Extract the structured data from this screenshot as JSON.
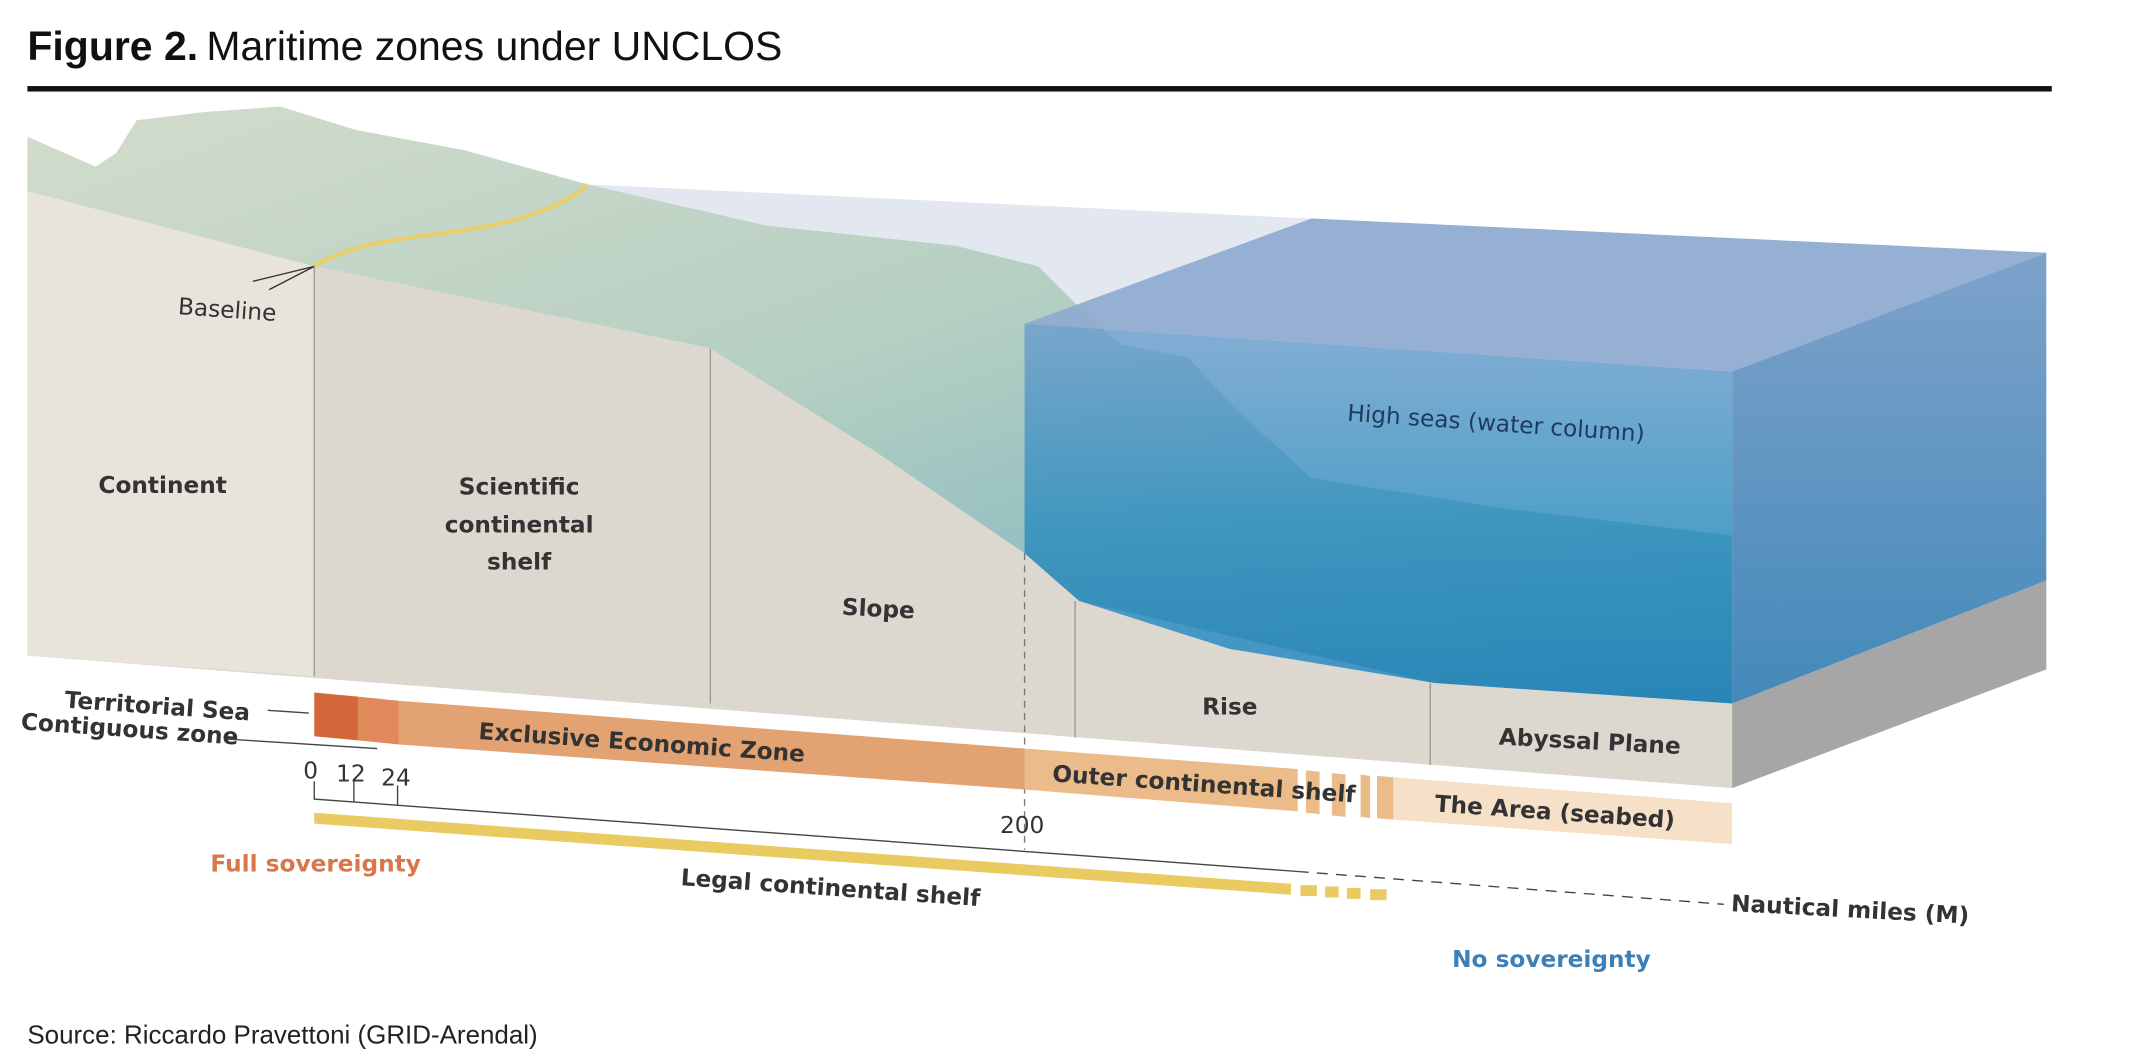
{
  "header": {
    "figure_label": "Figure 2.",
    "title": "Maritime zones under UNCLOS"
  },
  "labels": {
    "baseline": "Baseline",
    "continent": "Continent",
    "scientific_shelf": [
      "Scientific",
      "continental",
      "shelf"
    ],
    "slope": "Slope",
    "rise": "Rise",
    "abyssal_plain": "Abyssal Plane",
    "high_seas": "High seas (water column)",
    "territorial_sea": "Territorial Sea",
    "contiguous_zone": "Contiguous zone",
    "eez": "Exclusive Economic Zone",
    "outer_shelf": "Outer continental shelf",
    "the_area": "The Area (seabed)",
    "full_sovereignty": "Full sovereignty",
    "legal_shelf": "Legal continental shelf",
    "nautical_miles": "Nautical miles (M)",
    "no_sovereignty": "No sovereignty"
  },
  "scale_marks": [
    "0",
    "12",
    "24",
    "200"
  ],
  "source": "Source: Riccardo Pravettoni (GRID-Arendal)"
}
